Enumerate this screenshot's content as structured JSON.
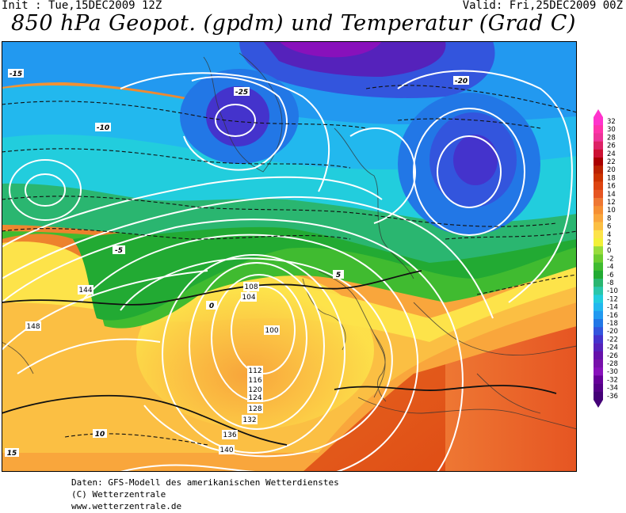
{
  "header": {
    "init": "Init : Tue,15DEC2009 12Z",
    "valid": "Valid: Fri,25DEC2009 00Z",
    "title": "850 hPa Geopot. (gpdm) und Temperatur (Grad C)"
  },
  "footer": {
    "line1": "Daten: GFS-Modell des amerikanischen Wetterdienstes",
    "line2": "(C) Wetterzentrale",
    "line3": "www.wetterzentrale.de"
  },
  "legend": {
    "values": [
      "32",
      "30",
      "28",
      "26",
      "24",
      "22",
      "20",
      "18",
      "16",
      "14",
      "12",
      "10",
      "8",
      "6",
      "4",
      "2",
      "0",
      "-2",
      "-4",
      "-6",
      "-8",
      "-10",
      "-12",
      "-14",
      "-16",
      "-18",
      "-20",
      "-22",
      "-24",
      "-26",
      "-28",
      "-30",
      "-32",
      "-34",
      "-36"
    ],
    "colors": [
      "#ff33cc",
      "#ff33aa",
      "#ee3399",
      "#dd2266",
      "#cc1133",
      "#aa0000",
      "#bb2200",
      "#cc3300",
      "#dd4411",
      "#e65522",
      "#ee7733",
      "#f58f33",
      "#f9a63c",
      "#fbbf43",
      "#fde34a",
      "#f2f038",
      "#98dc3c",
      "#6ccc30",
      "#40bb30",
      "#22aa33",
      "#2ab670",
      "#2ac6aa",
      "#22cddd",
      "#22b8ee",
      "#2299f0",
      "#2277e6",
      "#3355dd",
      "#4433cc",
      "#5522bb",
      "#6611aa",
      "#7711aa",
      "#8811bb",
      "#660099",
      "#550088",
      "#440077"
    ]
  },
  "map": {
    "geopotential_labels": [
      "100",
      "104",
      "108",
      "112",
      "116",
      "120",
      "124",
      "128",
      "132",
      "136",
      "140",
      "144",
      "148"
    ],
    "temperature_labels": [
      "-25",
      "-20",
      "-15",
      "-10",
      "-5",
      "0",
      "5",
      "10",
      "15"
    ]
  }
}
